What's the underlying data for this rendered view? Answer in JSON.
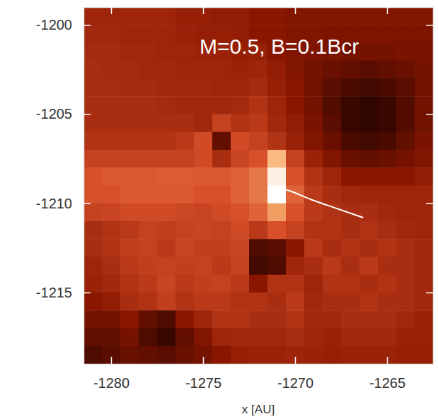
{
  "chart_data": {
    "type": "heatmap",
    "annotation": "M=0.5, B=0.1Bcr",
    "x_label": "x [AU]",
    "xlim": [
      -1281.5,
      -1262.5
    ],
    "ylim": [
      -1219,
      -1199
    ],
    "xticks": [
      -1280,
      -1275,
      -1270,
      -1265
    ],
    "yticks": [
      -1200,
      -1205,
      -1210,
      -1215
    ],
    "x_edges": [
      -1281.5,
      -1280.5,
      -1279.5,
      -1278.5,
      -1277.5,
      -1276.5,
      -1275.5,
      -1274.5,
      -1273.5,
      -1272.5,
      -1271.5,
      -1270.5,
      -1269.5,
      -1268.5,
      -1267.5,
      -1266.5,
      -1265.5,
      -1264.5,
      -1263.5,
      -1262.5
    ],
    "y_edges": [
      -1199,
      -1200,
      -1201,
      -1202,
      -1203,
      -1204,
      -1205,
      -1206,
      -1207,
      -1208,
      -1209,
      -1210,
      -1211,
      -1212,
      -1213,
      -1214,
      -1215,
      -1216,
      -1217,
      -1218,
      -1219
    ],
    "cells": [
      [
        0.35,
        0.35,
        0.35,
        0.35,
        0.35,
        0.33,
        0.33,
        0.32,
        0.32,
        0.3,
        0.3,
        0.28,
        0.28,
        0.28,
        0.28,
        0.28,
        0.28,
        0.28,
        0.28
      ],
      [
        0.36,
        0.36,
        0.35,
        0.35,
        0.35,
        0.34,
        0.33,
        0.33,
        0.32,
        0.3,
        0.3,
        0.28,
        0.28,
        0.27,
        0.27,
        0.27,
        0.27,
        0.27,
        0.27
      ],
      [
        0.37,
        0.37,
        0.36,
        0.36,
        0.35,
        0.35,
        0.34,
        0.34,
        0.33,
        0.33,
        0.3,
        0.28,
        0.27,
        0.26,
        0.25,
        0.25,
        0.25,
        0.26,
        0.26
      ],
      [
        0.38,
        0.37,
        0.37,
        0.36,
        0.36,
        0.35,
        0.35,
        0.35,
        0.34,
        0.35,
        0.32,
        0.28,
        0.25,
        0.22,
        0.2,
        0.18,
        0.2,
        0.22,
        0.25
      ],
      [
        0.38,
        0.38,
        0.37,
        0.37,
        0.36,
        0.36,
        0.36,
        0.35,
        0.35,
        0.37,
        0.33,
        0.3,
        0.24,
        0.18,
        0.14,
        0.12,
        0.14,
        0.18,
        0.24
      ],
      [
        0.38,
        0.38,
        0.38,
        0.38,
        0.37,
        0.36,
        0.36,
        0.36,
        0.37,
        0.4,
        0.35,
        0.3,
        0.24,
        0.16,
        0.1,
        0.08,
        0.1,
        0.16,
        0.24
      ],
      [
        0.38,
        0.38,
        0.38,
        0.38,
        0.38,
        0.38,
        0.36,
        0.45,
        0.4,
        0.42,
        0.36,
        0.32,
        0.26,
        0.18,
        0.1,
        0.08,
        0.1,
        0.16,
        0.24
      ],
      [
        0.4,
        0.4,
        0.4,
        0.4,
        0.4,
        0.42,
        0.48,
        0.2,
        0.48,
        0.45,
        0.4,
        0.34,
        0.28,
        0.22,
        0.14,
        0.12,
        0.14,
        0.2,
        0.26
      ],
      [
        0.45,
        0.45,
        0.45,
        0.45,
        0.45,
        0.45,
        0.48,
        0.38,
        0.46,
        0.5,
        0.78,
        0.45,
        0.34,
        0.28,
        0.22,
        0.2,
        0.22,
        0.25,
        0.28
      ],
      [
        0.5,
        0.52,
        0.52,
        0.52,
        0.53,
        0.53,
        0.52,
        0.52,
        0.55,
        0.6,
        0.95,
        0.5,
        0.4,
        0.35,
        0.3,
        0.3,
        0.3,
        0.3,
        0.32
      ],
      [
        0.5,
        0.5,
        0.52,
        0.52,
        0.52,
        0.52,
        0.5,
        0.5,
        0.55,
        0.6,
        1.0,
        0.55,
        0.42,
        0.38,
        0.36,
        0.35,
        0.35,
        0.35,
        0.35
      ],
      [
        0.45,
        0.46,
        0.48,
        0.48,
        0.48,
        0.47,
        0.46,
        0.48,
        0.5,
        0.55,
        0.7,
        0.5,
        0.42,
        0.4,
        0.38,
        0.38,
        0.36,
        0.35,
        0.35
      ],
      [
        0.38,
        0.4,
        0.42,
        0.45,
        0.44,
        0.45,
        0.46,
        0.45,
        0.48,
        0.42,
        0.5,
        0.45,
        0.4,
        0.4,
        0.38,
        0.4,
        0.38,
        0.36,
        0.35
      ],
      [
        0.38,
        0.4,
        0.44,
        0.45,
        0.42,
        0.46,
        0.44,
        0.44,
        0.46,
        0.15,
        0.18,
        0.3,
        0.42,
        0.38,
        0.4,
        0.38,
        0.4,
        0.38,
        0.36
      ],
      [
        0.35,
        0.38,
        0.42,
        0.44,
        0.45,
        0.44,
        0.45,
        0.42,
        0.45,
        0.12,
        0.15,
        0.35,
        0.38,
        0.42,
        0.38,
        0.42,
        0.38,
        0.38,
        0.36
      ],
      [
        0.34,
        0.36,
        0.4,
        0.42,
        0.46,
        0.42,
        0.44,
        0.45,
        0.42,
        0.3,
        0.4,
        0.4,
        0.35,
        0.4,
        0.4,
        0.38,
        0.4,
        0.38,
        0.36
      ],
      [
        0.3,
        0.32,
        0.38,
        0.4,
        0.44,
        0.4,
        0.42,
        0.42,
        0.4,
        0.4,
        0.38,
        0.42,
        0.36,
        0.38,
        0.38,
        0.4,
        0.38,
        0.38,
        0.36
      ],
      [
        0.25,
        0.25,
        0.3,
        0.2,
        0.15,
        0.3,
        0.35,
        0.4,
        0.4,
        0.38,
        0.38,
        0.4,
        0.36,
        0.36,
        0.38,
        0.38,
        0.38,
        0.36,
        0.34
      ],
      [
        0.2,
        0.2,
        0.25,
        0.15,
        0.1,
        0.2,
        0.28,
        0.35,
        0.36,
        0.36,
        0.36,
        0.38,
        0.35,
        0.34,
        0.36,
        0.36,
        0.36,
        0.34,
        0.34
      ],
      [
        0.15,
        0.18,
        0.22,
        0.2,
        0.18,
        0.22,
        0.25,
        0.3,
        0.33,
        0.34,
        0.34,
        0.35,
        0.34,
        0.33,
        0.34,
        0.34,
        0.34,
        0.33,
        0.33
      ]
    ],
    "trajectory": {
      "x": [
        -1271.5,
        -1270.3,
        -1269.1,
        -1267.7,
        -1266.3
      ],
      "y": [
        -1209.0,
        -1209.3,
        -1209.8,
        -1210.3,
        -1210.8
      ]
    }
  }
}
